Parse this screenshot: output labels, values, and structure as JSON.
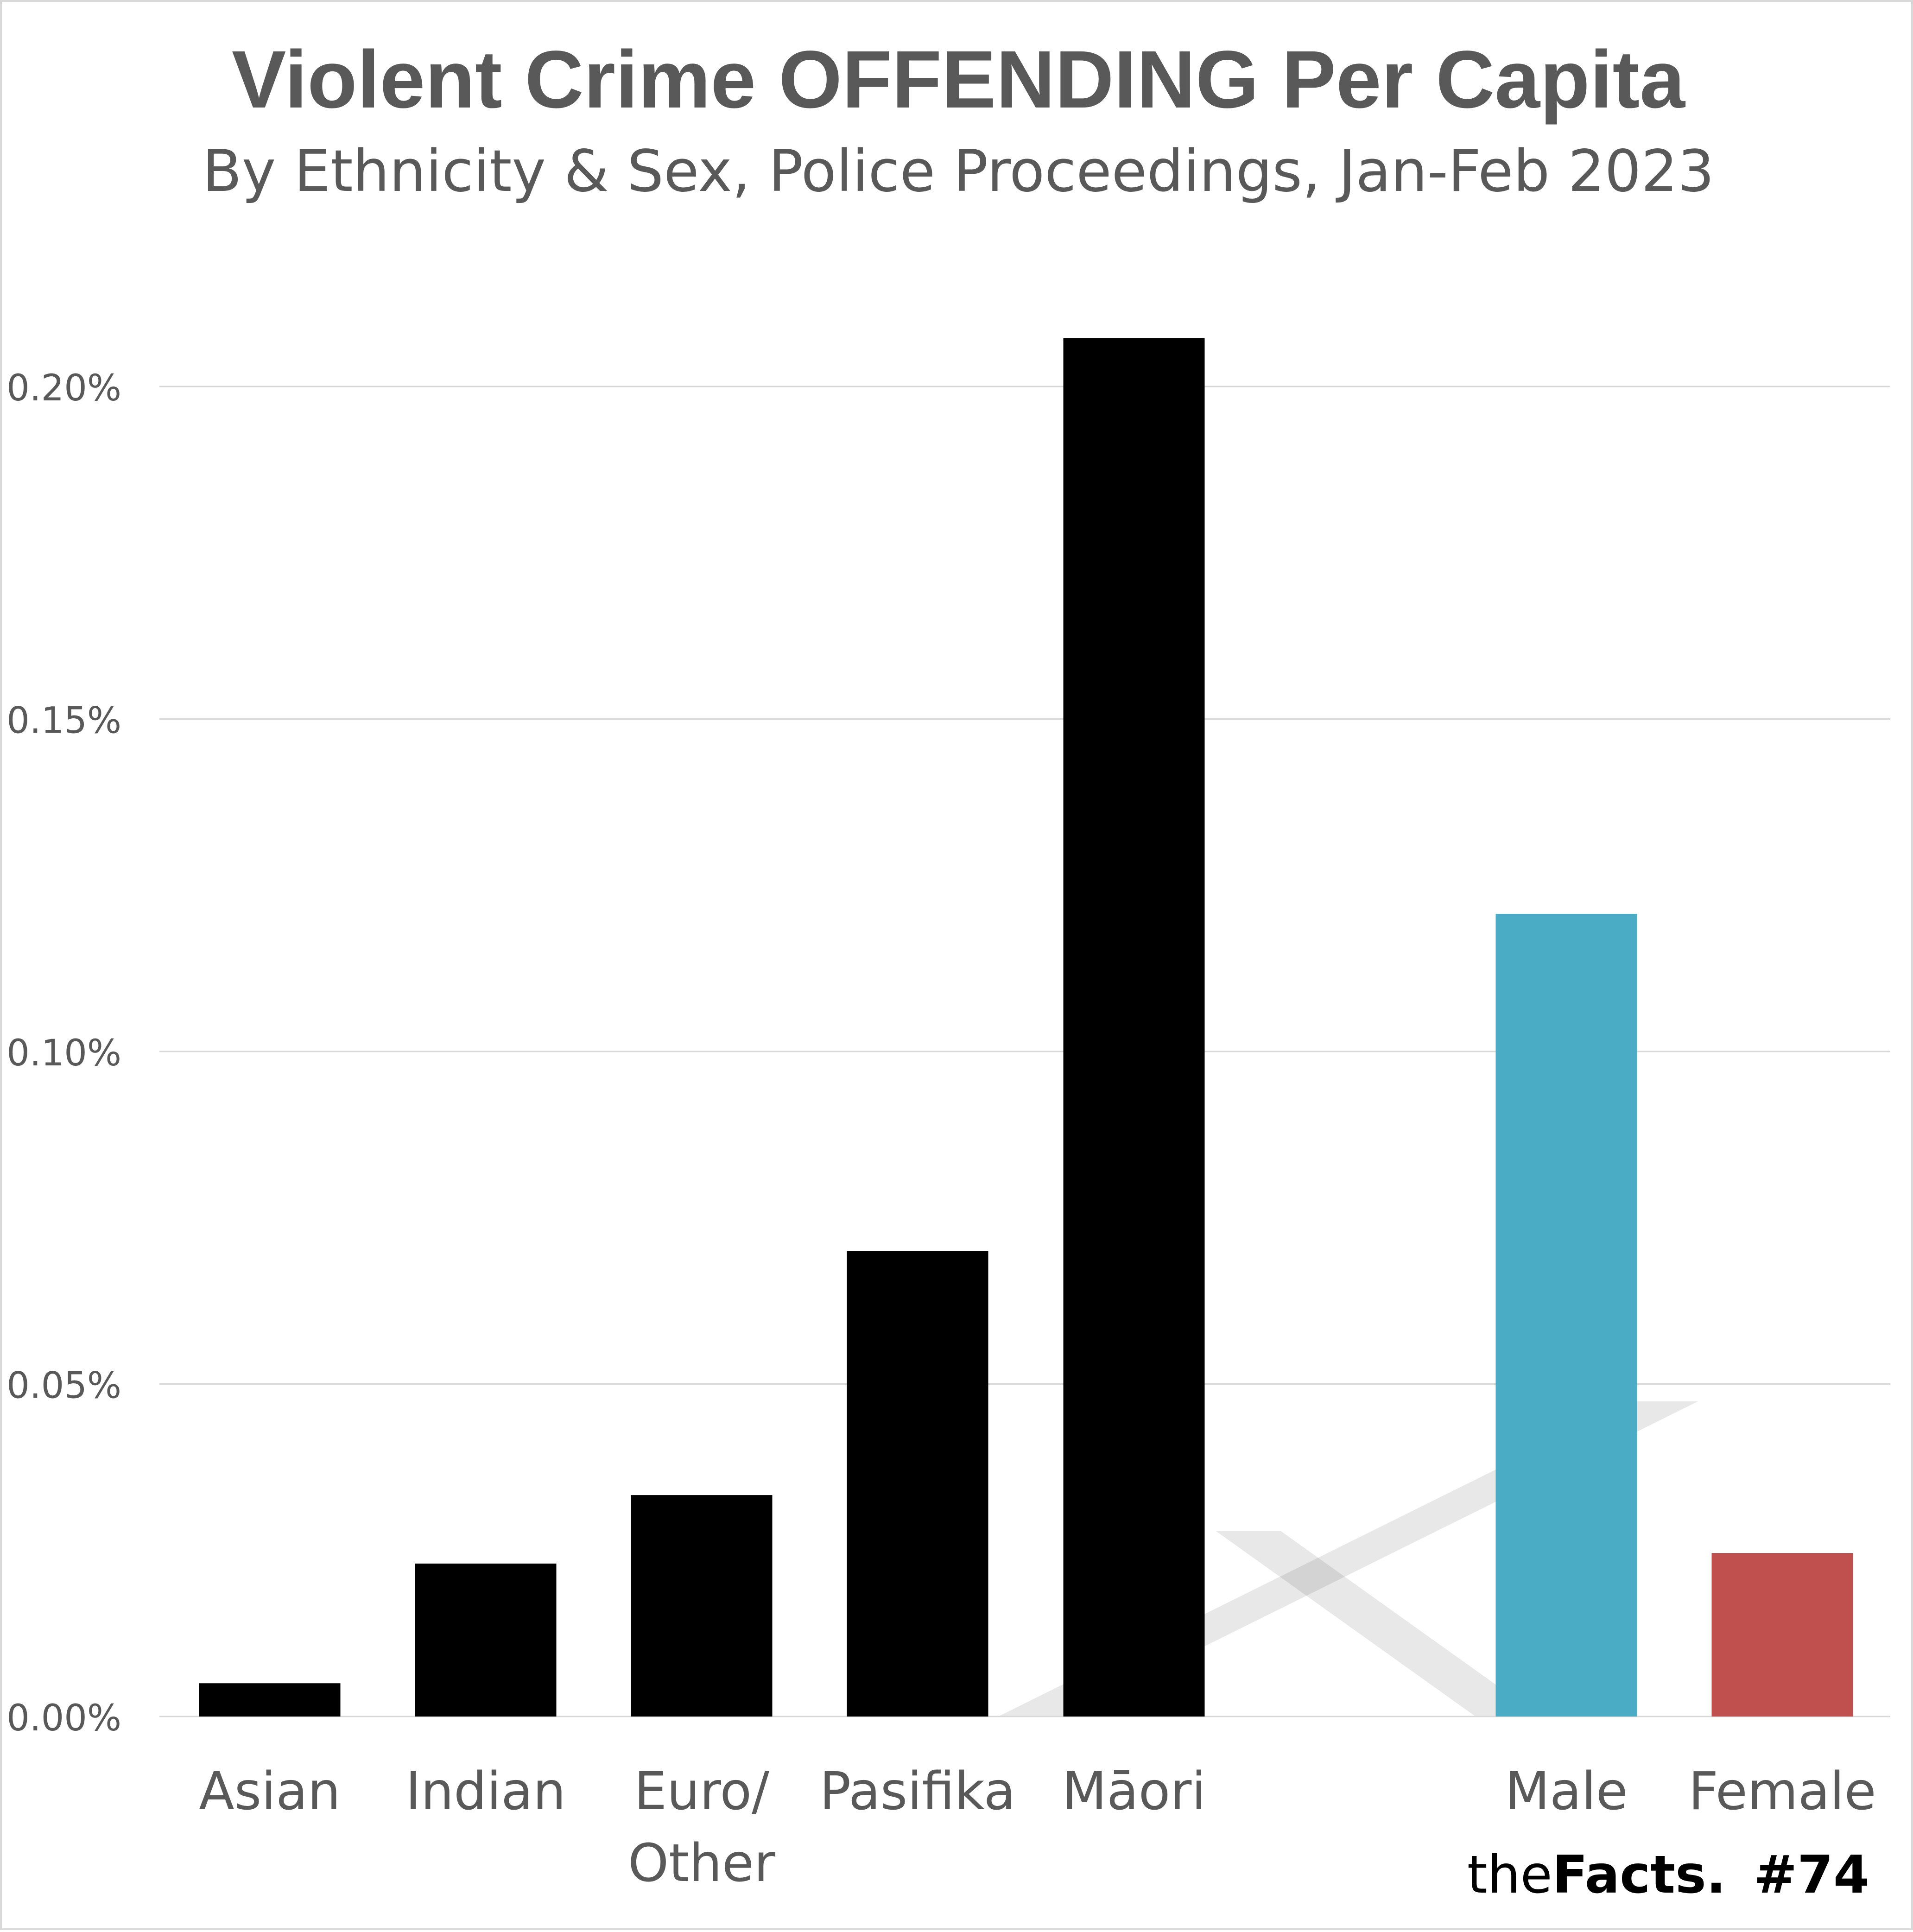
{
  "chart_data": {
    "type": "bar",
    "title": "Violent Crime OFFENDING Per Capita",
    "subtitle": "By Ethnicity & Sex, Police Proceedings, Jan-Feb 2023",
    "xlabel": "",
    "ylabel": "",
    "ylim": [
      0,
      0.2
    ],
    "yticks": [
      "0.00%",
      "0.05%",
      "0.10%",
      "0.15%",
      "0.20%"
    ],
    "ytick_values": [
      0,
      0.05,
      0.1,
      0.15,
      0.2
    ],
    "grid": true,
    "legend": "none",
    "categories": [
      {
        "label_lines": [
          "Asian"
        ],
        "value": 0.005,
        "color": "#000000"
      },
      {
        "label_lines": [
          "Indian"
        ],
        "value": 0.023,
        "color": "#000000"
      },
      {
        "label_lines": [
          "Euro/",
          "Other"
        ],
        "value": 0.0333,
        "color": "#000000"
      },
      {
        "label_lines": [
          "Pasifika"
        ],
        "value": 0.07,
        "color": "#000000"
      },
      {
        "label_lines": [
          "Māori"
        ],
        "value": 0.2073,
        "color": "#000000"
      },
      {
        "label_lines": [
          "Male"
        ],
        "value": 0.1207,
        "color": "#4bacc6"
      },
      {
        "label_lines": [
          "Female"
        ],
        "value": 0.0246,
        "color": "#c0504d"
      }
    ]
  },
  "branding": {
    "prefix": "the",
    "name": "Facts",
    "dot": ".",
    "issue": "#74",
    "dot_color": "#f28c28"
  },
  "colors": {
    "gridline": "#d9d9d9",
    "text": "#595959"
  }
}
